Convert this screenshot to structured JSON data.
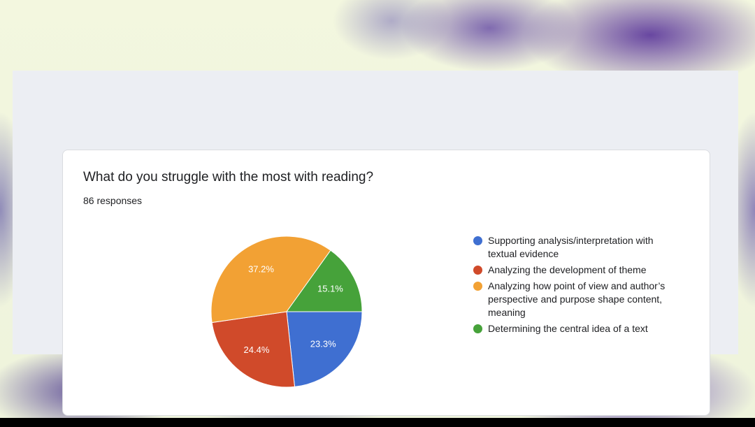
{
  "chart_data": {
    "type": "pie",
    "title": "What do you struggle with the most with reading?",
    "subtitle": "86 responses",
    "categories": [
      "Supporting analysis/interpretation with textual evidence",
      "Analyzing the development of theme",
      "Analyzing how point of view and author’s perspective and purpose shape content, meaning",
      "Determining the central idea of a text"
    ],
    "values": [
      23.3,
      24.4,
      37.2,
      15.1
    ],
    "value_labels": [
      "23.3%",
      "24.4%",
      "37.2%",
      "15.1%"
    ],
    "colors": [
      "#3f6fd1",
      "#d04a2a",
      "#f2a134",
      "#46a23a"
    ]
  }
}
